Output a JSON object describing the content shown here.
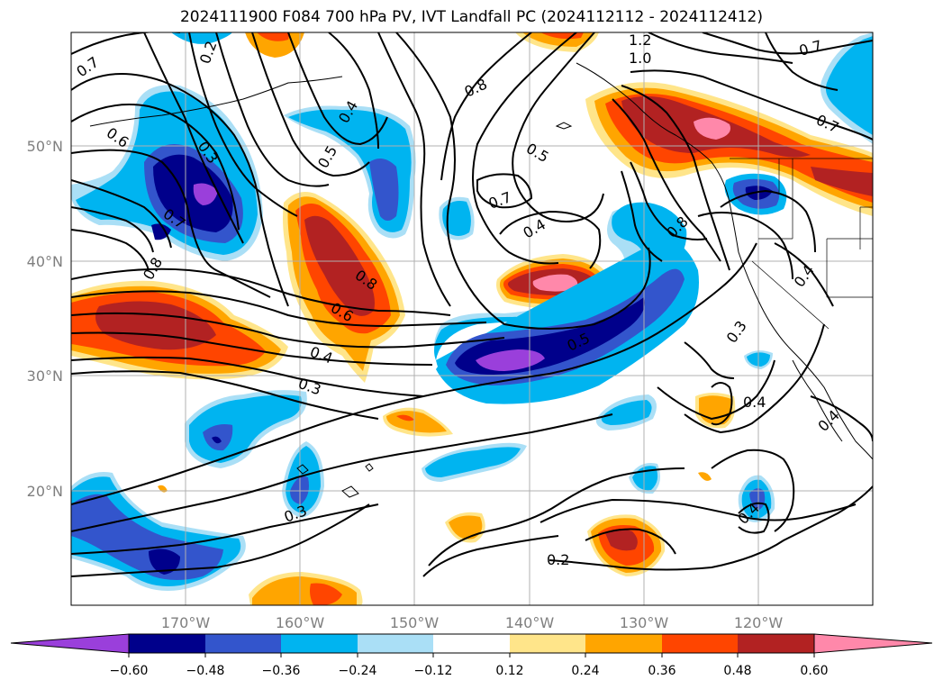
{
  "title": "2024111900 F084 700 hPa PV, IVT Landfall PC (2024112112 - 2024112412)",
  "lat_labels": [
    "50°N",
    "40°N",
    "30°N",
    "20°N"
  ],
  "lon_labels": [
    "170°W",
    "160°W",
    "150°W",
    "140°W",
    "130°W",
    "120°W"
  ],
  "contour_labels": [
    "0.7",
    "0.6",
    "0.2",
    "0.3",
    "0.4",
    "0.5",
    "0.7",
    "0.8",
    "0.8",
    "0.6",
    "0.4",
    "0.3",
    "0.8",
    "0.5",
    "0.7",
    "0.4",
    "0.5",
    "1.2",
    "1.0",
    "0.7",
    "0.7",
    "0.8",
    "0.4",
    "0.3",
    "0.4",
    "0.4",
    "0.3",
    "0.2",
    "0.4"
  ],
  "colorbar": {
    "ticks": [
      "−0.60",
      "−0.48",
      "−0.36",
      "−0.24",
      "−0.12",
      "0.12",
      "0.24",
      "0.36",
      "0.48",
      "0.60"
    ],
    "colors": [
      "#9a3fdb",
      "#00008b",
      "#3355cc",
      "#00b4f0",
      "#aadff6",
      "#ffffff",
      "#ffe58a",
      "#ffa500",
      "#ff4500",
      "#b22222",
      "#ff88aa"
    ]
  },
  "map": {
    "colors": {
      "neg1": "#00b4f0",
      "neg2": "#3355cc",
      "neg3": "#00008b",
      "neg4": "#9a3fdb",
      "neg0": "#aadff6",
      "pos0": "#ffe58a",
      "pos1": "#ffa500",
      "pos2": "#ff4500",
      "pos3": "#b22222",
      "pos4": "#ff88aa"
    }
  }
}
